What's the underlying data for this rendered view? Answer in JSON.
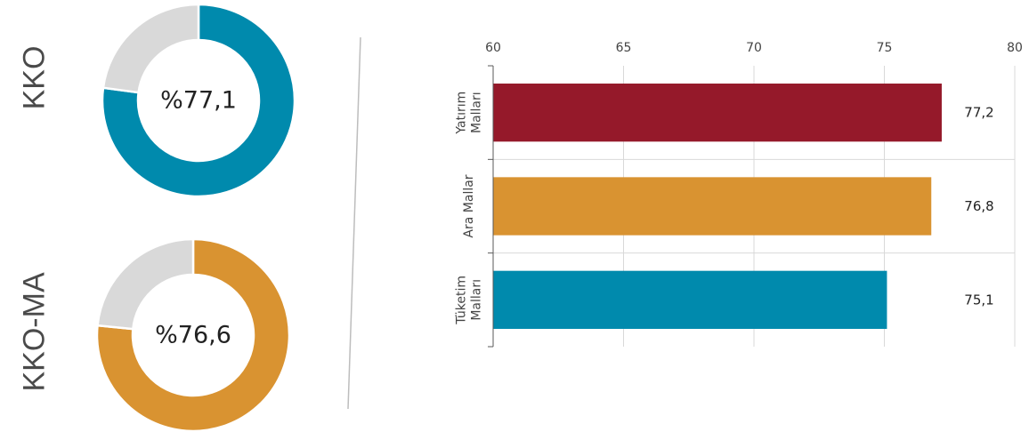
{
  "labels": {
    "kko": "KKO",
    "kkoma": "KKO-MA"
  },
  "colors": {
    "teal": "#008AAD",
    "orange": "#D99331",
    "crimson": "#95192A",
    "gray": "#D9D9D9"
  },
  "chart_data": [
    {
      "type": "pie",
      "variant": "donut",
      "name": "KKO",
      "center_label": "%77,1",
      "slices": [
        {
          "value": 77.1,
          "color": "#008AAD"
        },
        {
          "value": 22.9,
          "color": "#D9D9D9"
        }
      ]
    },
    {
      "type": "pie",
      "variant": "donut",
      "name": "KKO-MA",
      "center_label": "%76,6",
      "slices": [
        {
          "value": 76.6,
          "color": "#D99331"
        },
        {
          "value": 23.4,
          "color": "#D9D9D9"
        }
      ]
    },
    {
      "type": "bar",
      "orientation": "horizontal",
      "categories": [
        "Yatırım Malları",
        "Ara Mallar",
        "Tüketim Malları"
      ],
      "category_lines": [
        [
          "Yatırım",
          "Malları"
        ],
        [
          "Ara Mallar"
        ],
        [
          "Tüketim",
          "Malları"
        ]
      ],
      "values": [
        77.2,
        76.8,
        75.1
      ],
      "value_labels": [
        "77,2",
        "76,8",
        "75,1"
      ],
      "colors": [
        "#95192A",
        "#D99331",
        "#008AAD"
      ],
      "xlim": [
        60,
        80
      ],
      "xticks": [
        60,
        65,
        70,
        75,
        80
      ],
      "xaxis_position": "top",
      "grid": true
    }
  ]
}
